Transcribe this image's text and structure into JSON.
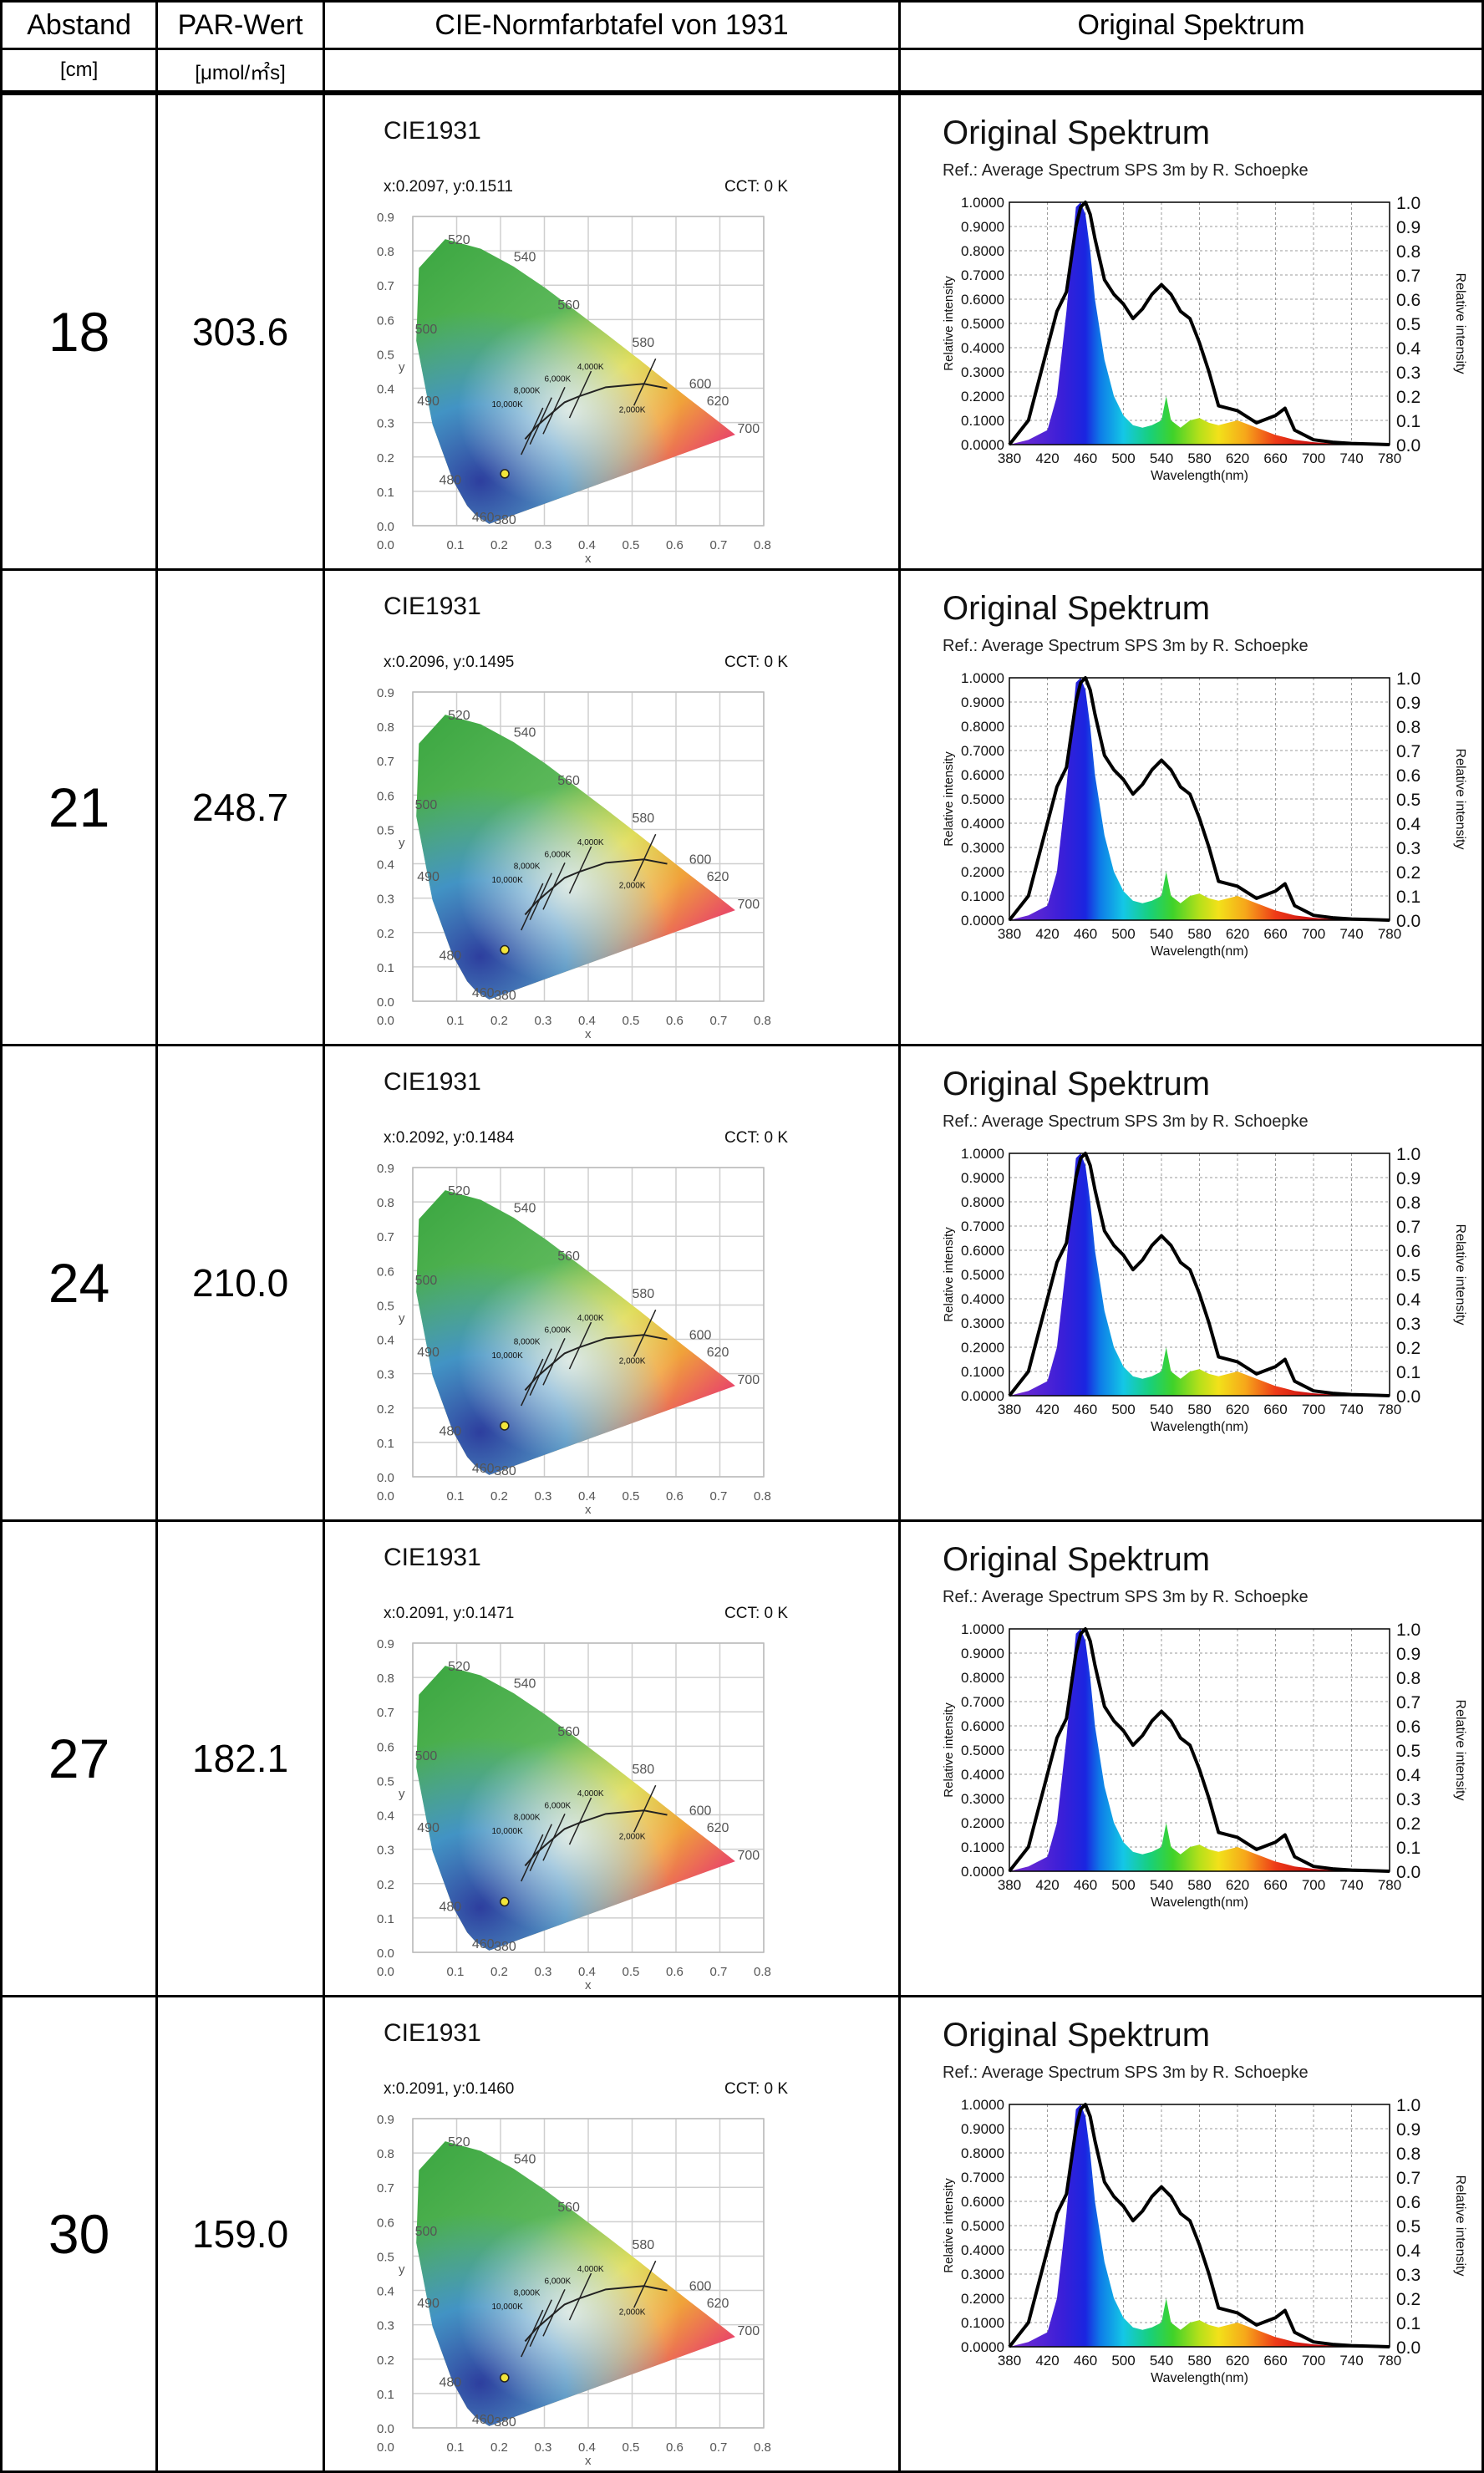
{
  "headers": {
    "abstand": "Abstand",
    "par": "PAR-Wert",
    "cie": "CIE-Normfarbtafel von 1931",
    "spectrum": "Original Spektrum"
  },
  "units": {
    "abstand": "[cm]",
    "par": "[μmol/㎡s]"
  },
  "cie_common": {
    "title": "CIE1931",
    "cct": "CCT: 0 K",
    "y_ticks": [
      "0.9",
      "0.8",
      "0.7",
      "0.6",
      "0.5",
      "0.4",
      "0.3",
      "0.2",
      "0.1",
      "0.0"
    ],
    "x_ticks": [
      "0.1",
      "0.2",
      "0.3",
      "0.4",
      "0.5",
      "0.6",
      "0.7",
      "0.8"
    ],
    "x_label": "x",
    "y_label": "y",
    "wavelength_labels": [
      "520",
      "540",
      "560",
      "580",
      "600",
      "620",
      "700",
      "500",
      "490",
      "480",
      "460",
      "380"
    ],
    "cct_labels": [
      "4,000K",
      "6,000K",
      "8,000K",
      "10,000K",
      "2,000K"
    ]
  },
  "spectrum_common": {
    "title": "Original Spektrum",
    "ref": "Ref.: Average Spectrum SPS 3m by R. Schoepke",
    "left_ticks": [
      "1.0000",
      "0.9000",
      "0.8000",
      "0.7000",
      "0.6000",
      "0.5000",
      "0.4000",
      "0.3000",
      "0.2000",
      "0.1000",
      "0.0000"
    ],
    "right_ticks": [
      "1.0",
      "0.9",
      "0.8",
      "0.7",
      "0.6",
      "0.5",
      "0.4",
      "0.3",
      "0.2",
      "0.1",
      "0.0"
    ],
    "x_ticks": [
      "380",
      "420",
      "460",
      "500",
      "540",
      "580",
      "620",
      "660",
      "700",
      "740",
      "780"
    ],
    "x_label": "Wavelength(nm)",
    "y_label_left": "Relative intensity",
    "y_label_right": "Relative intensity"
  },
  "rows": [
    {
      "abstand": "18",
      "par": "303.6",
      "coord": "x:0.2097, y:0.1511",
      "cie_x": 0.2097,
      "cie_y": 0.1511
    },
    {
      "abstand": "21",
      "par": "248.7",
      "coord": "x:0.2096, y:0.1495",
      "cie_x": 0.2096,
      "cie_y": 0.1495
    },
    {
      "abstand": "24",
      "par": "210.0",
      "coord": "x:0.2092, y:0.1484",
      "cie_x": 0.2092,
      "cie_y": 0.1484
    },
    {
      "abstand": "27",
      "par": "182.1",
      "coord": "x:0.2091, y:0.1471",
      "cie_x": 0.2091,
      "cie_y": 0.1471
    },
    {
      "abstand": "30",
      "par": "159.0",
      "coord": "x:0.2091, y:0.1460",
      "cie_x": 0.2091,
      "cie_y": 0.146
    }
  ],
  "chart_data": [
    {
      "type": "scatter",
      "title": "CIE1931",
      "xlabel": "x",
      "ylabel": "y",
      "xlim": [
        0.0,
        0.8
      ],
      "ylim": [
        0.0,
        0.9
      ],
      "series": [
        {
          "x": [
            0.2097,
            0.2096,
            0.2092,
            0.2091,
            0.2091
          ],
          "y": [
            0.1511,
            0.1495,
            0.1484,
            0.1471,
            0.146
          ]
        }
      ]
    },
    {
      "type": "area",
      "title": "Original Spektrum",
      "xlabel": "Wavelength(nm)",
      "ylabel": "Relative intensity",
      "xlim": [
        380,
        780
      ],
      "ylim": [
        0,
        1
      ],
      "x": [
        380,
        400,
        420,
        430,
        440,
        450,
        455,
        460,
        465,
        470,
        480,
        490,
        500,
        510,
        520,
        530,
        540,
        545,
        550,
        560,
        570,
        580,
        590,
        600,
        620,
        640,
        660,
        670,
        680,
        700,
        720,
        740,
        780
      ],
      "series": [
        {
          "values": [
            0.0,
            0.02,
            0.06,
            0.2,
            0.55,
            0.98,
            1.0,
            0.95,
            0.8,
            0.6,
            0.35,
            0.2,
            0.12,
            0.08,
            0.07,
            0.08,
            0.1,
            0.2,
            0.1,
            0.07,
            0.1,
            0.11,
            0.09,
            0.08,
            0.1,
            0.07,
            0.04,
            0.03,
            0.02,
            0.01,
            0.005,
            0.003,
            0.0
          ]
        },
        {
          "values": [
            0.0,
            0.1,
            0.4,
            0.55,
            0.63,
            0.9,
            0.98,
            1.0,
            0.95,
            0.85,
            0.68,
            0.62,
            0.58,
            0.52,
            0.56,
            0.62,
            0.66,
            0.64,
            0.62,
            0.55,
            0.52,
            0.42,
            0.3,
            0.16,
            0.14,
            0.09,
            0.12,
            0.15,
            0.06,
            0.02,
            0.01,
            0.005,
            0.0
          ]
        }
      ]
    }
  ]
}
